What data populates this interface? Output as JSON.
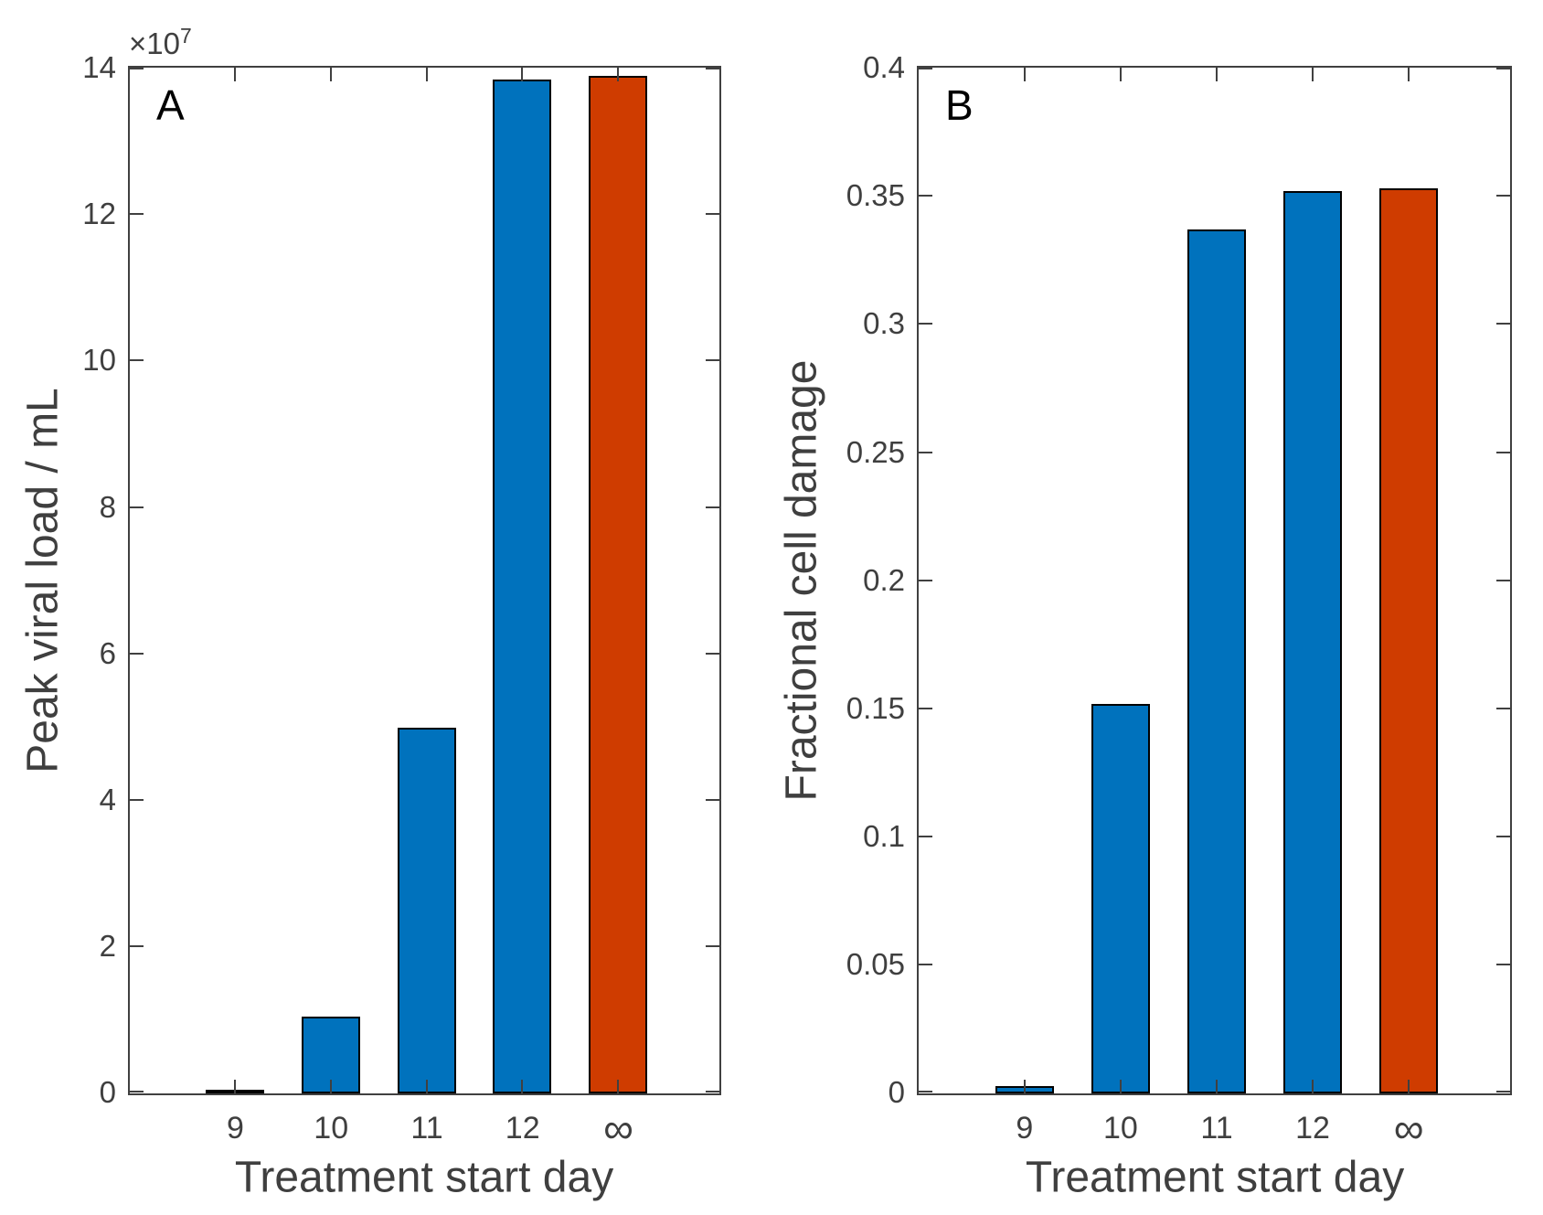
{
  "figure": {
    "background": "#ffffff",
    "axis_color": "#404040",
    "text_color": "#3f3f3f",
    "bar_edge_color": "#000000",
    "bar_fill_blue": "#0072BD",
    "bar_fill_orange": "#CF3C00"
  },
  "panels": [
    {
      "letter": "A",
      "ylabel": "Peak viral load / mL",
      "xlabel": "Treatment start day",
      "offset_text": "×10",
      "offset_exponent": "7"
    },
    {
      "letter": "B",
      "ylabel": "Fractional cell damage",
      "xlabel": "Treatment start day"
    }
  ],
  "chart_data": [
    {
      "type": "bar",
      "panel": "A",
      "title": "",
      "xlabel": "Treatment start day",
      "ylabel": "Peak viral load / mL",
      "y_multiplier_text": "×10^7",
      "categories": [
        "9",
        "10",
        "11",
        "12",
        "∞"
      ],
      "values": [
        0.04,
        1.05,
        5.0,
        13.85,
        13.9
      ],
      "values_note": "in units of 10^7 viral load per mL",
      "ylim": [
        0,
        14
      ],
      "yticks": [
        0,
        2,
        4,
        6,
        8,
        10,
        12,
        14
      ],
      "ytick_labels": [
        "0",
        "2",
        "4",
        "6",
        "8",
        "10",
        "12",
        "14"
      ],
      "grid": false,
      "legend": null,
      "bar_colors": [
        "#0072BD",
        "#0072BD",
        "#0072BD",
        "#0072BD",
        "#CF3C00"
      ]
    },
    {
      "type": "bar",
      "panel": "B",
      "title": "",
      "xlabel": "Treatment start day",
      "ylabel": "Fractional cell damage",
      "categories": [
        "9",
        "10",
        "11",
        "12",
        "∞"
      ],
      "values": [
        0.003,
        0.152,
        0.337,
        0.352,
        0.353
      ],
      "ylim": [
        0,
        0.4
      ],
      "yticks": [
        0,
        0.05,
        0.1,
        0.15,
        0.2,
        0.25,
        0.3,
        0.35,
        0.4
      ],
      "ytick_labels": [
        "0",
        "0.05",
        "0.1",
        "0.15",
        "0.2",
        "0.25",
        "0.3",
        "0.35",
        "0.4"
      ],
      "grid": false,
      "legend": null,
      "bar_colors": [
        "#0072BD",
        "#0072BD",
        "#0072BD",
        "#0072BD",
        "#CF3C00"
      ]
    }
  ]
}
